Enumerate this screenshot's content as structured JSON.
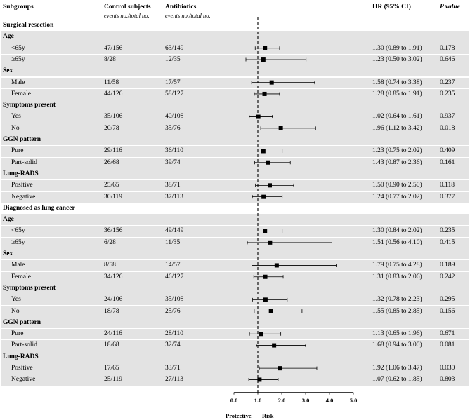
{
  "header": {
    "subgroups": "Subgroups",
    "control": "Control subjects",
    "control_sub": "events no./total no.",
    "antibiotics": "Antibiotics",
    "antibiotics_sub": "events no./total no.",
    "hr": "HR (95% CI)",
    "pvalue": "P value"
  },
  "axis": {
    "ticks": [
      "0.0",
      "1.0",
      "2.0",
      "3.0",
      "4.0",
      "5.0"
    ],
    "protective": "Protective",
    "risk": "Risk"
  },
  "chart_data": {
    "type": "forest",
    "xlim": [
      0,
      5
    ],
    "reference_line": 1.0,
    "xticks": [
      0,
      1,
      2,
      3,
      4,
      5
    ],
    "xlabel_left": "Protective",
    "xlabel_right": "Risk",
    "sections": [
      {
        "title": "Surgical resection",
        "groups": [
          {
            "name": "Age",
            "rows": [
              {
                "label": "<65y",
                "control": "47/156",
                "antibiotics": "63/149",
                "hr_text": "1.30 (0.89 to 1.91)",
                "p": "0.178",
                "hr": 1.3,
                "lo": 0.89,
                "hi": 1.91
              },
              {
                "label": "≥65y",
                "control": "8/28",
                "antibiotics": "12/35",
                "hr_text": "1.23 (0.50 to 3.02)",
                "p": "0.646",
                "hr": 1.23,
                "lo": 0.5,
                "hi": 3.02
              }
            ]
          },
          {
            "name": "Sex",
            "rows": [
              {
                "label": "Male",
                "control": "11/58",
                "antibiotics": "17/57",
                "hr_text": "1.58 (0.74 to 3.38)",
                "p": "0.237",
                "hr": 1.58,
                "lo": 0.74,
                "hi": 3.38
              },
              {
                "label": "Female",
                "control": "44/126",
                "antibiotics": "58/127",
                "hr_text": "1.28 (0.85 to 1.91)",
                "p": "0.235",
                "hr": 1.28,
                "lo": 0.85,
                "hi": 1.91
              }
            ]
          },
          {
            "name": "Symptoms present",
            "rows": [
              {
                "label": "Yes",
                "control": "35/106",
                "antibiotics": "40/108",
                "hr_text": "1.02 (0.64 to 1.61)",
                "p": "0.937",
                "hr": 1.02,
                "lo": 0.64,
                "hi": 1.61
              },
              {
                "label": "No",
                "control": "20/78",
                "antibiotics": "35/76",
                "hr_text": "1.96 (1.12 to 3.42)",
                "p": "0.018",
                "hr": 1.96,
                "lo": 1.12,
                "hi": 3.42
              }
            ]
          },
          {
            "name": "GGN pattern",
            "rows": [
              {
                "label": "Pure",
                "control": "29/116",
                "antibiotics": "36/110",
                "hr_text": "1.23 (0.75 to 2.02)",
                "p": "0.409",
                "hr": 1.23,
                "lo": 0.75,
                "hi": 2.02
              },
              {
                "label": "Part-solid",
                "control": "26/68",
                "antibiotics": "39/74",
                "hr_text": "1.43 (0.87 to 2.36)",
                "p": "0.161",
                "hr": 1.43,
                "lo": 0.87,
                "hi": 2.36
              }
            ]
          },
          {
            "name": "Lung-RADS",
            "rows": [
              {
                "label": "Positive",
                "control": "25/65",
                "antibiotics": "38/71",
                "hr_text": "1.50 (0.90 to 2.50)",
                "p": "0.118",
                "hr": 1.5,
                "lo": 0.9,
                "hi": 2.5
              },
              {
                "label": "Negative",
                "control": "30/119",
                "antibiotics": "37/113",
                "hr_text": "1.24 (0.77 to 2.02)",
                "p": "0.377",
                "hr": 1.24,
                "lo": 0.77,
                "hi": 2.02
              }
            ]
          }
        ]
      },
      {
        "title": "Diagnosed as lung cancer",
        "groups": [
          {
            "name": "Age",
            "rows": [
              {
                "label": "<65y",
                "control": "36/156",
                "antibiotics": "49/149",
                "hr_text": "1.30 (0.84 to 2.02)",
                "p": "0.235",
                "hr": 1.3,
                "lo": 0.84,
                "hi": 2.02
              },
              {
                "label": "≥65y",
                "control": "6/28",
                "antibiotics": "11/35",
                "hr_text": "1.51 (0.56 to 4.10)",
                "p": "0.415",
                "hr": 1.51,
                "lo": 0.56,
                "hi": 4.1
              }
            ]
          },
          {
            "name": "Sex",
            "rows": [
              {
                "label": "Male",
                "control": "8/58",
                "antibiotics": "14/57",
                "hr_text": "1.79 (0.75 to 4.28)",
                "p": "0.189",
                "hr": 1.79,
                "lo": 0.75,
                "hi": 4.28
              },
              {
                "label": "Female",
                "control": "34/126",
                "antibiotics": "46/127",
                "hr_text": "1.31 (0.83 to 2.06)",
                "p": "0.242",
                "hr": 1.31,
                "lo": 0.83,
                "hi": 2.06
              }
            ]
          },
          {
            "name": "Symptoms present",
            "rows": [
              {
                "label": "Yes",
                "control": "24/106",
                "antibiotics": "35/108",
                "hr_text": "1.32 (0.78 to 2.23)",
                "p": "0.295",
                "hr": 1.32,
                "lo": 0.78,
                "hi": 2.23
              },
              {
                "label": "No",
                "control": "18/78",
                "antibiotics": "25/76",
                "hr_text": "1.55 (0.85 to 2.85)",
                "p": "0.156",
                "hr": 1.55,
                "lo": 0.85,
                "hi": 2.85
              }
            ]
          },
          {
            "name": "GGN pattern",
            "rows": [
              {
                "label": "Pure",
                "control": "24/116",
                "antibiotics": "28/110",
                "hr_text": "1.13 (0.65 to 1.96)",
                "p": "0.671",
                "hr": 1.13,
                "lo": 0.65,
                "hi": 1.96
              },
              {
                "label": "Part-solid",
                "control": "18/68",
                "antibiotics": "32/74",
                "hr_text": "1.68 (0.94 to 3.00)",
                "p": "0.081",
                "hr": 1.68,
                "lo": 0.94,
                "hi": 3.0
              }
            ]
          },
          {
            "name": "Lung-RADS",
            "rows": [
              {
                "label": "Positive",
                "control": "17/65",
                "antibiotics": "33/71",
                "hr_text": "1.92 (1.06 to 3.47)",
                "p": "0.030",
                "hr": 1.92,
                "lo": 1.06,
                "hi": 3.47
              },
              {
                "label": "Negative",
                "control": "25/119",
                "antibiotics": "27/113",
                "hr_text": "1.07 (0.62 to 1.85)",
                "p": "0.803",
                "hr": 1.07,
                "lo": 0.62,
                "hi": 1.85
              }
            ]
          }
        ]
      }
    ]
  }
}
